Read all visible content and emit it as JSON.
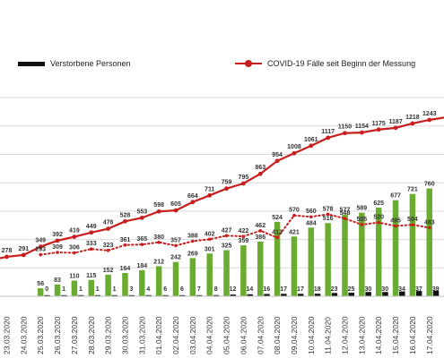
{
  "legend": {
    "deaths": "Verstorbene Personen",
    "cases": "COVID-19 Fälle seit Beginn der Messung"
  },
  "colors": {
    "cases_line": "#c81e1e",
    "recovered_bars": "#6aac2f",
    "deaths_bars": "#111111",
    "active_dotted": "#c81e1e",
    "grid": "#d9d9d9"
  },
  "chart_data": {
    "type": "bar",
    "categories": [
      "23.03.2020",
      "24.03.2020",
      "25.03.2020",
      "26.03.2020",
      "27.03.2020",
      "28.03.2020",
      "29.03.2020",
      "30.03.2020",
      "31.03.2020",
      "01.04.2020",
      "02.04.2020",
      "03.04.2020",
      "04.04.2020",
      "05.04.2020",
      "06.04.2020",
      "07.04.2020",
      "08.04.2020",
      "09.04.2020",
      "10.04.2020",
      "11.04.2020",
      "12.04.2020",
      "13.04.2020",
      "14.04.2020",
      "15.04.2020",
      "16.04.2020",
      "17.04.2020"
    ],
    "series": [
      {
        "name": "COVID-19 Fälle seit Beginn der Messung",
        "type": "line",
        "values": [
          278,
          291,
          349,
          392,
          419,
          449,
          476,
          528,
          553,
          598,
          605,
          664,
          711,
          759,
          795,
          863,
          954,
          1008,
          1061,
          1117,
          1150,
          1154,
          1175,
          1187,
          1218,
          1243
        ]
      },
      {
        "name": "",
        "type": "dotted-line",
        "values": [
          null,
          null,
          293,
          309,
          306,
          333,
          323,
          361,
          365,
          380,
          357,
          388,
          402,
          427,
          422,
          462,
          413,
          570,
          560,
          578,
          548,
          505,
          520,
          495,
          504,
          483
        ]
      },
      {
        "name": "",
        "type": "bar",
        "color": "green",
        "values": [
          null,
          null,
          56,
          83,
          110,
          115,
          152,
          164,
          184,
          212,
          242,
          269,
          301,
          325,
          359,
          386,
          524,
          421,
          484,
          516,
          577,
          589,
          625,
          677,
          721,
          760
        ]
      },
      {
        "name": "Verstorbene Personen",
        "type": "bar",
        "color": "black",
        "values": [
          null,
          null,
          0,
          1,
          1,
          1,
          1,
          3,
          4,
          6,
          6,
          7,
          8,
          12,
          14,
          16,
          17,
          17,
          18,
          23,
          25,
          30,
          30,
          34,
          37,
          39
        ]
      }
    ],
    "xlabel": "",
    "ylabel": "",
    "ylim": [
      0,
      1400
    ],
    "grid": true,
    "legend_position": "top"
  }
}
